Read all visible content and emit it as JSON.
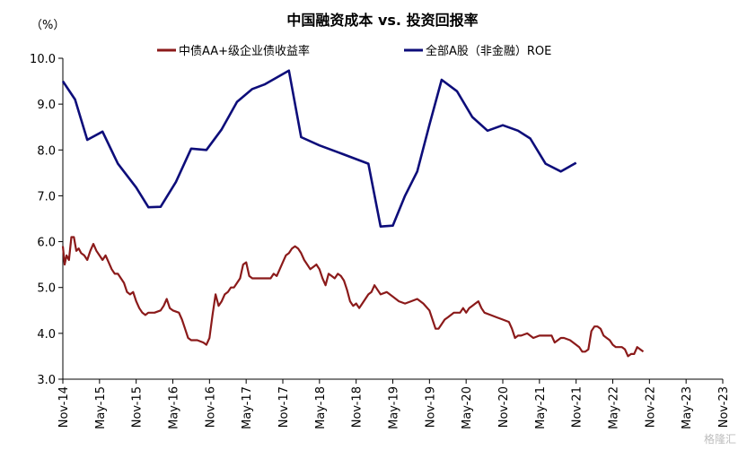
{
  "chart_data": {
    "type": "line",
    "title": "中国融资成本 vs. 投资回报率",
    "y_unit": "（%）",
    "ylim": [
      3.0,
      10.0
    ],
    "yticks": [
      "3.0",
      "4.0",
      "5.0",
      "6.0",
      "7.0",
      "8.0",
      "9.0",
      "10.0"
    ],
    "x_ticks": [
      "Nov-14",
      "May-15",
      "Nov-15",
      "May-16",
      "Nov-16",
      "May-17",
      "Nov-17",
      "May-18",
      "Nov-18",
      "May-19",
      "Nov-19",
      "May-20",
      "Nov-20",
      "May-21",
      "Nov-21",
      "May-22",
      "Nov-22",
      "May-23",
      "Nov-23"
    ],
    "x_tick_month_index": [
      0,
      6,
      12,
      18,
      24,
      30,
      36,
      42,
      48,
      54,
      60,
      66,
      72,
      78,
      84,
      90,
      96,
      102,
      108
    ],
    "legend_position": "top",
    "grid": false,
    "series": [
      {
        "name": "中债AA+级企业债收益率",
        "color": "#8B1A1A",
        "points": [
          [
            0,
            5.9
          ],
          [
            0.3,
            5.5
          ],
          [
            0.6,
            5.7
          ],
          [
            1,
            5.6
          ],
          [
            1.4,
            6.1
          ],
          [
            1.8,
            6.1
          ],
          [
            2.2,
            5.8
          ],
          [
            2.6,
            5.85
          ],
          [
            3,
            5.75
          ],
          [
            3.5,
            5.7
          ],
          [
            4,
            5.6
          ],
          [
            4.5,
            5.8
          ],
          [
            5,
            5.95
          ],
          [
            5.5,
            5.8
          ],
          [
            6,
            5.7
          ],
          [
            6.5,
            5.6
          ],
          [
            7,
            5.7
          ],
          [
            7.5,
            5.55
          ],
          [
            8,
            5.4
          ],
          [
            8.5,
            5.3
          ],
          [
            9,
            5.3
          ],
          [
            9.5,
            5.2
          ],
          [
            10,
            5.1
          ],
          [
            10.5,
            4.9
          ],
          [
            11,
            4.85
          ],
          [
            11.5,
            4.9
          ],
          [
            12,
            4.7
          ],
          [
            12.5,
            4.55
          ],
          [
            13,
            4.45
          ],
          [
            13.5,
            4.4
          ],
          [
            14,
            4.45
          ],
          [
            15,
            4.45
          ],
          [
            16,
            4.5
          ],
          [
            16.5,
            4.6
          ],
          [
            17,
            4.75
          ],
          [
            17.5,
            4.55
          ],
          [
            18,
            4.5
          ],
          [
            19,
            4.45
          ],
          [
            19.5,
            4.3
          ],
          [
            20,
            4.1
          ],
          [
            20.5,
            3.9
          ],
          [
            21,
            3.85
          ],
          [
            22,
            3.85
          ],
          [
            23,
            3.8
          ],
          [
            23.5,
            3.75
          ],
          [
            24,
            3.9
          ],
          [
            24.5,
            4.4
          ],
          [
            25,
            4.85
          ],
          [
            25.5,
            4.6
          ],
          [
            26,
            4.7
          ],
          [
            26.5,
            4.85
          ],
          [
            27,
            4.9
          ],
          [
            27.5,
            5.0
          ],
          [
            28,
            5.0
          ],
          [
            28.5,
            5.1
          ],
          [
            29,
            5.2
          ],
          [
            29.5,
            5.5
          ],
          [
            30,
            5.55
          ],
          [
            30.5,
            5.25
          ],
          [
            31,
            5.2
          ],
          [
            32,
            5.2
          ],
          [
            33,
            5.2
          ],
          [
            34,
            5.2
          ],
          [
            34.5,
            5.3
          ],
          [
            35,
            5.25
          ],
          [
            35.5,
            5.4
          ],
          [
            36,
            5.55
          ],
          [
            36.5,
            5.7
          ],
          [
            37,
            5.75
          ],
          [
            37.5,
            5.85
          ],
          [
            38,
            5.9
          ],
          [
            38.5,
            5.85
          ],
          [
            39,
            5.75
          ],
          [
            39.5,
            5.6
          ],
          [
            40,
            5.5
          ],
          [
            40.5,
            5.4
          ],
          [
            41,
            5.45
          ],
          [
            41.5,
            5.5
          ],
          [
            42,
            5.4
          ],
          [
            42.5,
            5.2
          ],
          [
            43,
            5.05
          ],
          [
            43.5,
            5.3
          ],
          [
            44,
            5.25
          ],
          [
            44.5,
            5.2
          ],
          [
            45,
            5.3
          ],
          [
            45.5,
            5.25
          ],
          [
            46,
            5.15
          ],
          [
            46.5,
            4.95
          ],
          [
            47,
            4.7
          ],
          [
            47.5,
            4.6
          ],
          [
            48,
            4.65
          ],
          [
            48.5,
            4.55
          ],
          [
            49,
            4.65
          ],
          [
            49.5,
            4.75
          ],
          [
            50,
            4.85
          ],
          [
            50.5,
            4.9
          ],
          [
            51,
            5.05
          ],
          [
            51.5,
            4.95
          ],
          [
            52,
            4.85
          ],
          [
            53,
            4.9
          ],
          [
            54,
            4.8
          ],
          [
            55,
            4.7
          ],
          [
            56,
            4.65
          ],
          [
            57,
            4.7
          ],
          [
            58,
            4.75
          ],
          [
            59,
            4.65
          ],
          [
            60,
            4.5
          ],
          [
            60.5,
            4.3
          ],
          [
            61,
            4.1
          ],
          [
            61.5,
            4.1
          ],
          [
            62,
            4.2
          ],
          [
            62.5,
            4.3
          ],
          [
            63,
            4.35
          ],
          [
            63.5,
            4.4
          ],
          [
            64,
            4.45
          ],
          [
            65,
            4.45
          ],
          [
            65.5,
            4.55
          ],
          [
            66,
            4.45
          ],
          [
            66.5,
            4.55
          ],
          [
            67,
            4.6
          ],
          [
            67.5,
            4.65
          ],
          [
            68,
            4.7
          ],
          [
            68.5,
            4.55
          ],
          [
            69,
            4.45
          ],
          [
            70,
            4.4
          ],
          [
            71,
            4.35
          ],
          [
            72,
            4.3
          ],
          [
            73,
            4.25
          ],
          [
            73.5,
            4.1
          ],
          [
            74,
            3.9
          ],
          [
            74.5,
            3.95
          ],
          [
            75,
            3.95
          ],
          [
            76,
            4.0
          ],
          [
            77,
            3.9
          ],
          [
            78,
            3.95
          ],
          [
            79,
            3.95
          ],
          [
            80,
            3.95
          ],
          [
            80.5,
            3.8
          ],
          [
            81,
            3.85
          ],
          [
            81.5,
            3.9
          ],
          [
            82,
            3.9
          ],
          [
            83,
            3.85
          ],
          [
            84,
            3.75
          ],
          [
            84.5,
            3.7
          ],
          [
            85,
            3.6
          ],
          [
            85.5,
            3.6
          ],
          [
            86,
            3.65
          ],
          [
            86.5,
            4.05
          ],
          [
            87,
            4.15
          ],
          [
            87.5,
            4.15
          ],
          [
            88,
            4.1
          ],
          [
            88.5,
            3.95
          ],
          [
            89,
            3.9
          ],
          [
            89.5,
            3.85
          ],
          [
            90,
            3.75
          ],
          [
            90.5,
            3.7
          ],
          [
            91,
            3.7
          ],
          [
            91.5,
            3.7
          ],
          [
            92,
            3.65
          ],
          [
            92.5,
            3.5
          ],
          [
            93,
            3.55
          ],
          [
            93.5,
            3.55
          ],
          [
            94,
            3.7
          ],
          [
            94.5,
            3.65
          ],
          [
            95,
            3.6
          ]
        ]
      },
      {
        "name": "全部A股（非金融）ROE",
        "color": "#0D0D7A",
        "points": [
          [
            0,
            9.5
          ],
          [
            2,
            9.1
          ],
          [
            4,
            8.22
          ],
          [
            6.5,
            8.4
          ],
          [
            9,
            7.7
          ],
          [
            12,
            7.18
          ],
          [
            14,
            6.75
          ],
          [
            16,
            6.76
          ],
          [
            18.5,
            7.3
          ],
          [
            21,
            8.03
          ],
          [
            23.5,
            8.0
          ],
          [
            26,
            8.45
          ],
          [
            28.5,
            9.05
          ],
          [
            31,
            9.33
          ],
          [
            33,
            9.43
          ],
          [
            37,
            9.73
          ],
          [
            39,
            8.28
          ],
          [
            42,
            8.1
          ],
          [
            45,
            7.95
          ],
          [
            48,
            7.8
          ],
          [
            50,
            7.7
          ],
          [
            52,
            6.33
          ],
          [
            54,
            6.35
          ],
          [
            56,
            7.0
          ],
          [
            58,
            7.53
          ],
          [
            60,
            8.55
          ],
          [
            62,
            9.53
          ],
          [
            64.5,
            9.28
          ],
          [
            67,
            8.72
          ],
          [
            69.5,
            8.42
          ],
          [
            72,
            8.54
          ],
          [
            74.5,
            8.42
          ],
          [
            76.5,
            8.25
          ],
          [
            79,
            7.7
          ],
          [
            81.5,
            7.53
          ],
          [
            84,
            7.72
          ]
        ]
      }
    ],
    "x_months_total": 108
  },
  "watermark": "格隆汇"
}
